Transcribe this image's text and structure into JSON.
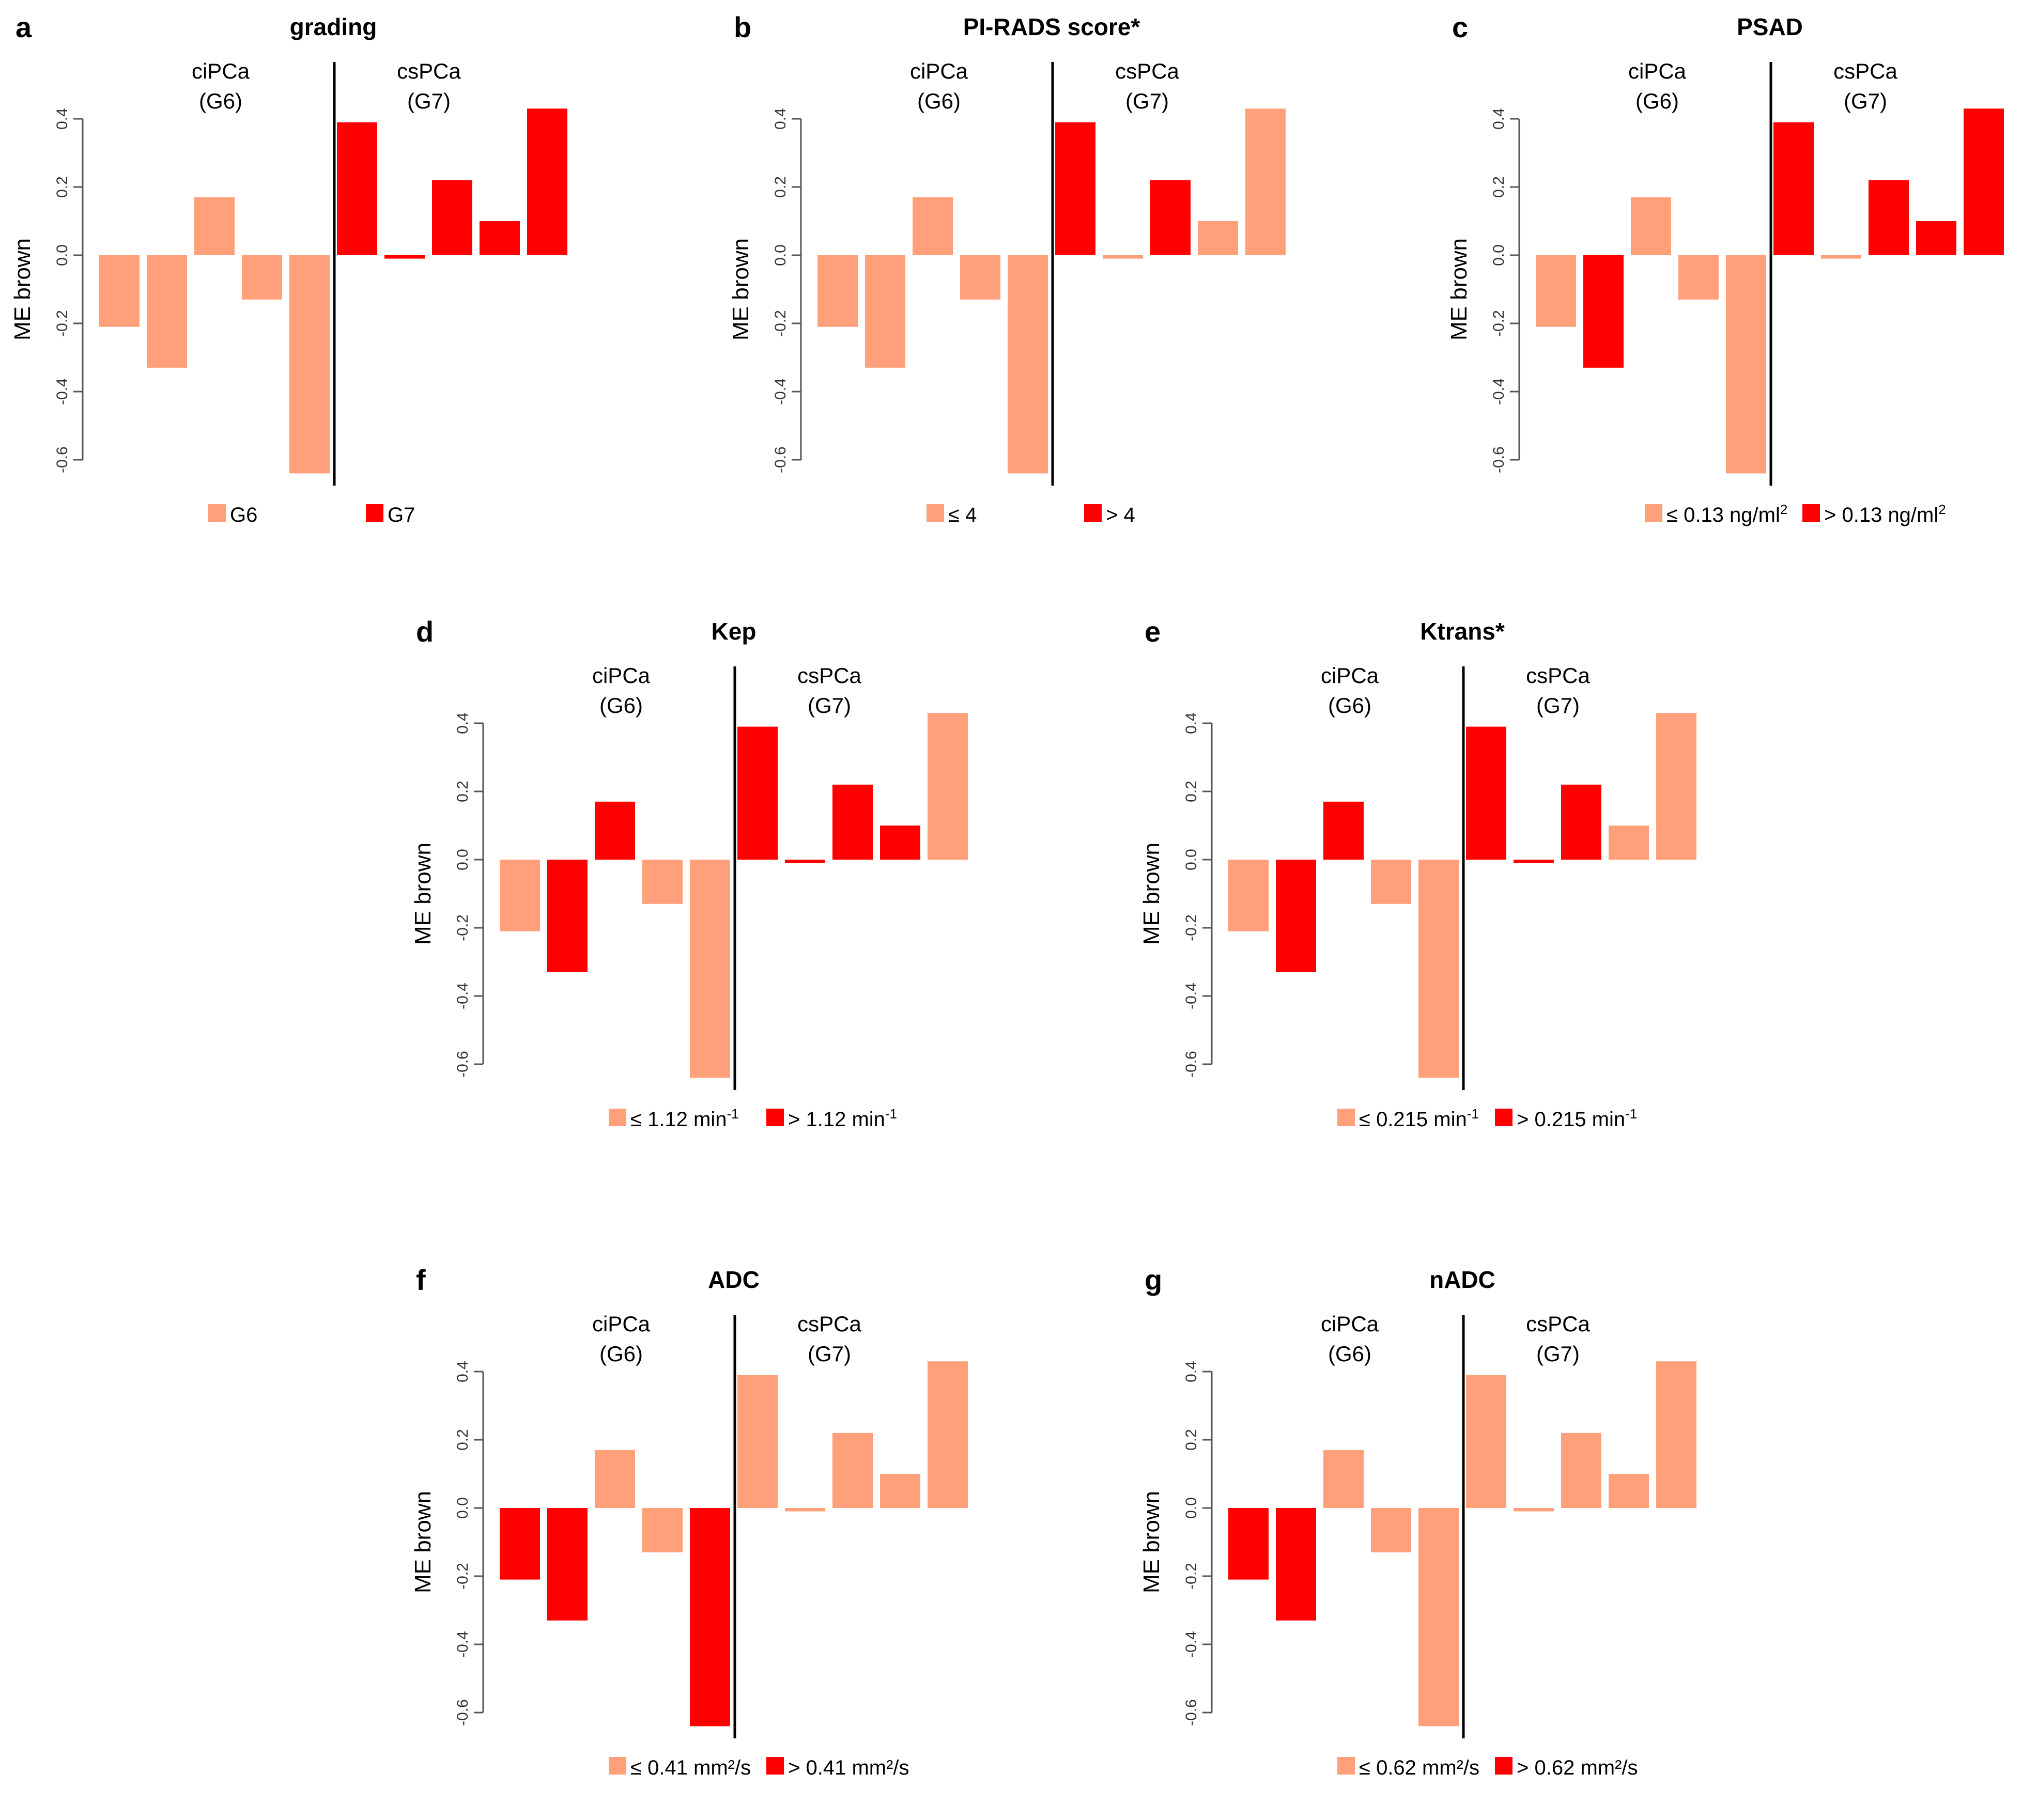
{
  "colors": {
    "light": "#FFA07A",
    "dark": "#FF0000",
    "axis": "#555555",
    "divider": "#000000"
  },
  "chart_data": [
    {
      "type": "bar",
      "letter": "a",
      "title": "grading",
      "ylabel": "ME brown",
      "ylim": [
        -0.6,
        0.4
      ],
      "yticks": [
        0.4,
        0.2,
        0.0,
        -0.2,
        -0.4,
        -0.6
      ],
      "ytick_labels": [
        "0.4",
        "0.2",
        "0.0",
        "-0.2",
        "-0.4",
        "-0.6"
      ],
      "group_labels": [
        [
          "ciPCa",
          "(G6)"
        ],
        [
          "csPCa",
          "(G7)"
        ]
      ],
      "values": [
        -0.21,
        -0.33,
        0.17,
        -0.13,
        -0.64,
        0.39,
        -0.01,
        0.22,
        0.1,
        0.43
      ],
      "series_index": [
        0,
        0,
        0,
        0,
        0,
        1,
        1,
        1,
        1,
        1
      ],
      "legend": [
        {
          "label": "G6",
          "sup": ""
        },
        {
          "label": "G7",
          "sup": ""
        }
      ]
    },
    {
      "type": "bar",
      "letter": "b",
      "title": "PI-RADS score*",
      "ylabel": "ME brown",
      "ylim": [
        -0.6,
        0.4
      ],
      "yticks": [
        0.4,
        0.2,
        0.0,
        -0.2,
        -0.4,
        -0.6
      ],
      "ytick_labels": [
        "0.4",
        "0.2",
        "0.0",
        "-0.2",
        "-0.4",
        "-0.6"
      ],
      "group_labels": [
        [
          "ciPCa",
          "(G6)"
        ],
        [
          "csPCa",
          "(G7)"
        ]
      ],
      "values": [
        -0.21,
        -0.33,
        0.17,
        -0.13,
        -0.64,
        0.39,
        -0.01,
        0.22,
        0.1,
        0.43
      ],
      "series_index": [
        0,
        0,
        0,
        0,
        0,
        1,
        0,
        1,
        0,
        0
      ],
      "legend": [
        {
          "label": "≤ 4",
          "sup": ""
        },
        {
          "label": "> 4",
          "sup": ""
        }
      ]
    },
    {
      "type": "bar",
      "letter": "c",
      "title": "PSAD",
      "ylabel": "ME brown",
      "ylim": [
        -0.6,
        0.4
      ],
      "yticks": [
        0.4,
        0.2,
        0.0,
        -0.2,
        -0.4,
        -0.6
      ],
      "ytick_labels": [
        "0.4",
        "0.2",
        "0.0",
        "-0.2",
        "-0.4",
        "-0.6"
      ],
      "group_labels": [
        [
          "ciPCa",
          "(G6)"
        ],
        [
          "csPCa",
          "(G7)"
        ]
      ],
      "values": [
        -0.21,
        -0.33,
        0.17,
        -0.13,
        -0.64,
        0.39,
        -0.01,
        0.22,
        0.1,
        0.43
      ],
      "series_index": [
        0,
        1,
        0,
        0,
        0,
        1,
        0,
        1,
        1,
        1
      ],
      "legend": [
        {
          "label": "≤ 0.13 ng/ml",
          "sup": "2"
        },
        {
          "label": "> 0.13 ng/ml",
          "sup": "2"
        }
      ]
    },
    {
      "type": "bar",
      "letter": "d",
      "title": "Kep",
      "ylabel": "ME brown",
      "ylim": [
        -0.6,
        0.4
      ],
      "yticks": [
        0.4,
        0.2,
        0.0,
        -0.2,
        -0.4,
        -0.6
      ],
      "ytick_labels": [
        "0.4",
        "0.2",
        "0.0",
        "-0.2",
        "-0.4",
        "-0.6"
      ],
      "group_labels": [
        [
          "ciPCa",
          "(G6)"
        ],
        [
          "csPCa",
          "(G7)"
        ]
      ],
      "values": [
        -0.21,
        -0.33,
        0.17,
        -0.13,
        -0.64,
        0.39,
        -0.01,
        0.22,
        0.1,
        0.43
      ],
      "series_index": [
        0,
        1,
        1,
        0,
        0,
        1,
        1,
        1,
        1,
        0
      ],
      "legend": [
        {
          "label": "≤ 1.12 min",
          "sup": "-1"
        },
        {
          "label": "> 1.12  min",
          "sup": "-1"
        }
      ]
    },
    {
      "type": "bar",
      "letter": "e",
      "title": "Ktrans*",
      "ylabel": "ME brown",
      "ylim": [
        -0.6,
        0.4
      ],
      "yticks": [
        0.4,
        0.2,
        0.0,
        -0.2,
        -0.4,
        -0.6
      ],
      "ytick_labels": [
        "0.4",
        "0.2",
        "0.0",
        "-0.2",
        "-0.4",
        "-0.6"
      ],
      "group_labels": [
        [
          "ciPCa",
          "(G6)"
        ],
        [
          "csPCa",
          "(G7)"
        ]
      ],
      "values": [
        -0.21,
        -0.33,
        0.17,
        -0.13,
        -0.64,
        0.39,
        -0.01,
        0.22,
        0.1,
        0.43
      ],
      "series_index": [
        0,
        1,
        1,
        0,
        0,
        1,
        1,
        1,
        0,
        0
      ],
      "legend": [
        {
          "label": "≤ 0.215 min",
          "sup": "-1"
        },
        {
          "label": "> 0.215  min",
          "sup": "-1"
        }
      ]
    },
    {
      "type": "bar",
      "letter": "f",
      "title": "ADC",
      "ylabel": "ME brown",
      "ylim": [
        -0.6,
        0.4
      ],
      "yticks": [
        0.4,
        0.2,
        0.0,
        -0.2,
        -0.4,
        -0.6
      ],
      "ytick_labels": [
        "0.4",
        "0.2",
        "0.0",
        "-0.2",
        "-0.4",
        "-0.6"
      ],
      "group_labels": [
        [
          "ciPCa",
          "(G6)"
        ],
        [
          "csPCa",
          "(G7)"
        ]
      ],
      "values": [
        -0.21,
        -0.33,
        0.17,
        -0.13,
        -0.64,
        0.39,
        -0.01,
        0.22,
        0.1,
        0.43
      ],
      "series_index": [
        1,
        1,
        0,
        0,
        1,
        0,
        0,
        0,
        0,
        0
      ],
      "legend": [
        {
          "label": "≤ 0.41 mm²/s",
          "sup": ""
        },
        {
          "label": "> 0.41 mm²/s",
          "sup": ""
        }
      ]
    },
    {
      "type": "bar",
      "letter": "g",
      "title": "nADC",
      "ylabel": "ME brown",
      "ylim": [
        -0.6,
        0.4
      ],
      "yticks": [
        0.4,
        0.2,
        0.0,
        -0.2,
        -0.4,
        -0.6
      ],
      "ytick_labels": [
        "0.4",
        "0.2",
        "0.0",
        "-0.2",
        "-0.4",
        "-0.6"
      ],
      "group_labels": [
        [
          "ciPCa",
          "(G6)"
        ],
        [
          "csPCa",
          "(G7)"
        ]
      ],
      "values": [
        -0.21,
        -0.33,
        0.17,
        -0.13,
        -0.64,
        0.39,
        -0.01,
        0.22,
        0.1,
        0.43
      ],
      "series_index": [
        1,
        1,
        0,
        0,
        0,
        0,
        0,
        0,
        0,
        0
      ],
      "legend": [
        {
          "label": "≤ 0.62 mm²/s",
          "sup": ""
        },
        {
          "label": "> 0.62 mm²/s",
          "sup": ""
        }
      ]
    }
  ]
}
